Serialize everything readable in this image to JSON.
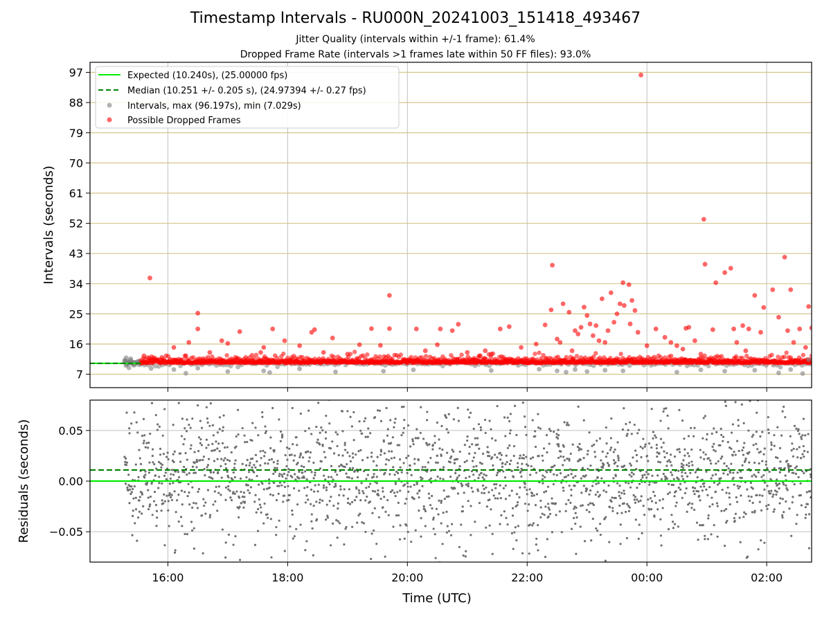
{
  "title": "Timestamp Intervals - RU000N_20241003_151418_493467",
  "subtitle1": "Jitter Quality (intervals within +/-1 frame): 61.4%",
  "subtitle2": "Dropped Frame Rate (intervals >1 frames late within 50 FF files): 93.0%",
  "colors": {
    "expected": "#00ee00",
    "median": "#008000",
    "intervals": "#808080",
    "dropped": "#ff0000",
    "hgrid_top": "#d4c48a",
    "grid": "#c0c0c0"
  },
  "chart_data": [
    {
      "type": "scatter",
      "xlabel": "",
      "ylabel": "Intervals (seconds)",
      "xlim": [
        14.7,
        26.75
      ],
      "ylim": [
        3.0,
        100.0
      ],
      "yticks": [
        7,
        16,
        25,
        34,
        43,
        52,
        61,
        70,
        79,
        88,
        97
      ],
      "xtick_values": [
        16,
        18,
        20,
        22,
        24,
        26
      ],
      "legend_position": "top-left",
      "legend": [
        "Expected (10.240s), (25.00000 fps)",
        "Median (10.251 +/- 0.205 s), (24.97394 +/- 0.27 fps)",
        "Intervals, max (96.197s), min (7.029s)",
        "Possible Dropped Frames"
      ],
      "expected": 10.24,
      "median": 10.251,
      "series": [
        {
          "name": "Intervals, max (96.197s), min (7.029s)",
          "points": [
            [
              15.28,
              11.2
            ],
            [
              15.3,
              9.6
            ],
            [
              15.32,
              10.8
            ],
            [
              15.35,
              8.9
            ],
            [
              15.38,
              11.6
            ],
            [
              15.42,
              9.9
            ],
            [
              15.45,
              10.4
            ],
            [
              15.72,
              8.7
            ],
            [
              16.1,
              8.4
            ],
            [
              16.3,
              7.3
            ],
            [
              16.5,
              8.8
            ],
            [
              17.0,
              7.8
            ],
            [
              17.6,
              8.0
            ],
            [
              17.7,
              7.5
            ],
            [
              18.2,
              8.6
            ],
            [
              18.8,
              7.7
            ],
            [
              19.6,
              7.9
            ],
            [
              20.1,
              8.3
            ],
            [
              21.4,
              8.1
            ],
            [
              22.2,
              8.5
            ],
            [
              22.5,
              8.0
            ],
            [
              22.65,
              7.6
            ],
            [
              22.8,
              8.4
            ],
            [
              23.0,
              7.8
            ],
            [
              23.3,
              8.2
            ],
            [
              23.6,
              8.0
            ],
            [
              24.5,
              7.6
            ],
            [
              24.9,
              8.3
            ],
            [
              25.3,
              7.9
            ],
            [
              25.8,
              8.2
            ],
            [
              26.2,
              7.4
            ],
            [
              26.4,
              8.4
            ],
            [
              26.6,
              7.2
            ],
            [
              26.7,
              11.3
            ]
          ]
        },
        {
          "name": "Possible Dropped Frames",
          "points": [
            [
              15.6,
              12.5
            ],
            [
              15.7,
              35.7
            ],
            [
              15.9,
              12.0
            ],
            [
              16.1,
              15.0
            ],
            [
              16.3,
              12.5
            ],
            [
              16.35,
              16.5
            ],
            [
              16.5,
              20.5
            ],
            [
              16.5,
              25.2
            ],
            [
              16.7,
              13.5
            ],
            [
              16.9,
              17.0
            ],
            [
              17.0,
              16.2
            ],
            [
              17.2,
              19.7
            ],
            [
              17.3,
              12.0
            ],
            [
              17.55,
              13.5
            ],
            [
              17.6,
              15.0
            ],
            [
              17.75,
              20.5
            ],
            [
              17.95,
              17.0
            ],
            [
              18.2,
              15.5
            ],
            [
              18.4,
              19.5
            ],
            [
              18.45,
              20.3
            ],
            [
              18.6,
              13.5
            ],
            [
              18.75,
              17.8
            ],
            [
              19.0,
              13.0
            ],
            [
              19.2,
              15.8
            ],
            [
              19.4,
              20.6
            ],
            [
              19.55,
              15.6
            ],
            [
              19.7,
              30.5
            ],
            [
              19.7,
              20.6
            ],
            [
              20.15,
              20.5
            ],
            [
              20.3,
              14.0
            ],
            [
              20.5,
              15.8
            ],
            [
              20.55,
              20.5
            ],
            [
              20.75,
              20.0
            ],
            [
              20.85,
              21.9
            ],
            [
              21.0,
              13.5
            ],
            [
              21.2,
              12.5
            ],
            [
              21.3,
              14.0
            ],
            [
              21.4,
              13.0
            ],
            [
              21.55,
              20.5
            ],
            [
              21.7,
              21.2
            ],
            [
              21.9,
              15.0
            ],
            [
              22.15,
              16.0
            ],
            [
              22.3,
              21.7
            ],
            [
              22.4,
              26.2
            ],
            [
              22.42,
              39.5
            ],
            [
              22.5,
              17.5
            ],
            [
              22.55,
              16.5
            ],
            [
              22.6,
              28.0
            ],
            [
              22.7,
              25.5
            ],
            [
              22.75,
              14.0
            ],
            [
              22.8,
              20.0
            ],
            [
              22.85,
              19.0
            ],
            [
              22.9,
              21.0
            ],
            [
              22.95,
              27.0
            ],
            [
              23.0,
              24.5
            ],
            [
              23.05,
              22.0
            ],
            [
              23.1,
              18.5
            ],
            [
              23.15,
              21.5
            ],
            [
              23.2,
              17.0
            ],
            [
              23.25,
              29.5
            ],
            [
              23.3,
              16.5
            ],
            [
              23.35,
              20.0
            ],
            [
              23.4,
              31.3
            ],
            [
              23.45,
              22.5
            ],
            [
              23.5,
              25.0
            ],
            [
              23.55,
              28.0
            ],
            [
              23.6,
              34.3
            ],
            [
              23.62,
              27.5
            ],
            [
              23.7,
              33.7
            ],
            [
              23.72,
              22.0
            ],
            [
              23.75,
              29.0
            ],
            [
              23.8,
              26.0
            ],
            [
              23.85,
              19.5
            ],
            [
              23.9,
              96.2
            ],
            [
              24.0,
              15.5
            ],
            [
              24.15,
              20.5
            ],
            [
              24.3,
              18.0
            ],
            [
              24.4,
              16.5
            ],
            [
              24.5,
              15.5
            ],
            [
              24.6,
              14.5
            ],
            [
              24.65,
              20.7
            ],
            [
              24.7,
              21.0
            ],
            [
              24.8,
              17.0
            ],
            [
              24.9,
              13.0
            ],
            [
              24.95,
              53.2
            ],
            [
              24.97,
              39.8
            ],
            [
              25.1,
              20.3
            ],
            [
              25.15,
              34.3
            ],
            [
              25.3,
              37.3
            ],
            [
              25.4,
              38.6
            ],
            [
              25.45,
              20.5
            ],
            [
              25.5,
              16.5
            ],
            [
              25.6,
              21.5
            ],
            [
              25.65,
              14.0
            ],
            [
              25.7,
              20.5
            ],
            [
              25.8,
              30.5
            ],
            [
              25.9,
              19.5
            ],
            [
              25.95,
              26.9
            ],
            [
              26.1,
              32.2
            ],
            [
              26.2,
              24.0
            ],
            [
              26.3,
              41.9
            ],
            [
              26.35,
              20.0
            ],
            [
              26.4,
              32.2
            ],
            [
              26.45,
              16.5
            ],
            [
              26.55,
              20.5
            ],
            [
              26.65,
              15.0
            ],
            [
              26.7,
              27.2
            ],
            [
              26.75,
              20.8
            ]
          ]
        }
      ]
    },
    {
      "type": "scatter",
      "xlabel": "Time (UTC)",
      "ylabel": "Residuals (seconds)",
      "xlim": [
        14.7,
        26.75
      ],
      "ylim": [
        -0.08,
        0.08
      ],
      "yticks": [
        -0.05,
        0.0,
        0.05
      ],
      "ytick_labels": [
        "−0.05",
        "0.00",
        "0.05"
      ],
      "xtick_values": [
        16,
        18,
        20,
        22,
        24,
        26
      ],
      "xtick_labels": [
        "16:00",
        "18:00",
        "20:00",
        "22:00",
        "00:00",
        "02:00"
      ],
      "expected_residual": 0.0,
      "median_residual": 0.011
    }
  ]
}
